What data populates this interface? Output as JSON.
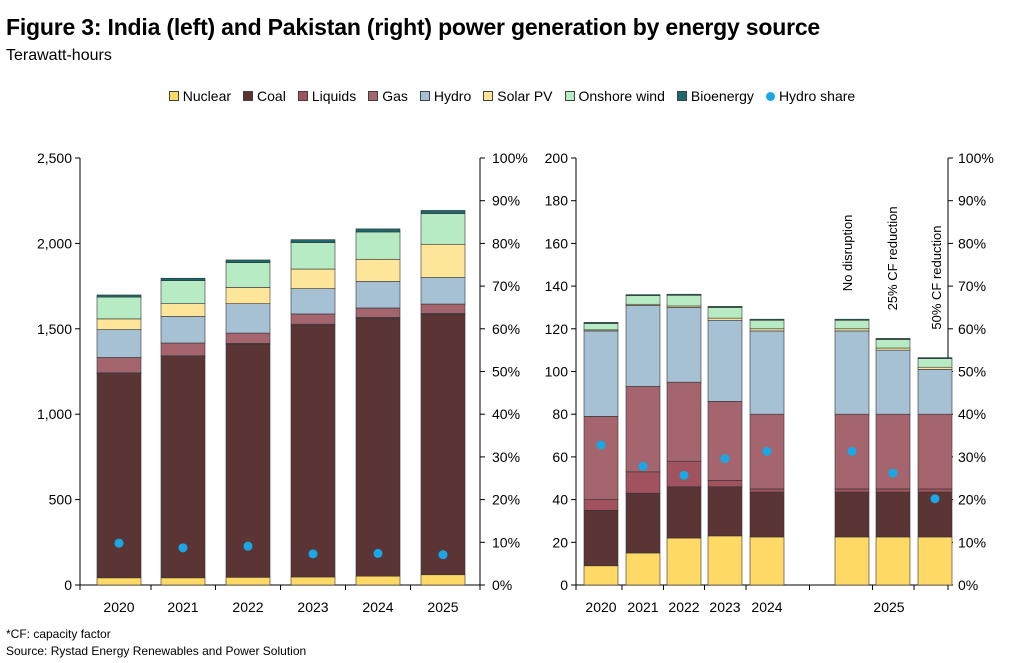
{
  "title": "Figure 3: India (left) and Pakistan (right) power generation by energy source",
  "subtitle": "Terawatt-hours",
  "footnote": "*CF: capacity factor",
  "source": "Source: Rystad Energy Renewables and Power Solution",
  "legend": [
    {
      "name": "Nuclear",
      "color": "#ffd966",
      "kind": "bar"
    },
    {
      "name": "Coal",
      "color": "#5b3536",
      "kind": "bar"
    },
    {
      "name": "Liquids",
      "color": "#a0525e",
      "kind": "bar"
    },
    {
      "name": "Gas",
      "color": "#a5656e",
      "kind": "bar"
    },
    {
      "name": "Hydro",
      "color": "#a6c1d4",
      "kind": "bar"
    },
    {
      "name": "Solar PV",
      "color": "#fde69a",
      "kind": "bar"
    },
    {
      "name": "Onshore wind",
      "color": "#b7ebc4",
      "kind": "bar"
    },
    {
      "name": "Bioenergy",
      "color": "#1b6b6e",
      "kind": "bar"
    },
    {
      "name": "Hydro share",
      "color": "#1aa7e6",
      "kind": "dot"
    }
  ],
  "chart_data": [
    {
      "type": "bar",
      "stacked": true,
      "country": "India",
      "categories": [
        "2020",
        "2021",
        "2022",
        "2023",
        "2024",
        "2025"
      ],
      "ylim": [
        0,
        2500
      ],
      "yticks": [
        "0",
        "500",
        "1,000",
        "1,500",
        "2,000",
        "2,500"
      ],
      "y2lim": [
        0,
        100
      ],
      "y2ticks": [
        "0%",
        "10%",
        "20%",
        "30%",
        "40%",
        "50%",
        "60%",
        "70%",
        "80%",
        "90%",
        "100%"
      ],
      "series": [
        {
          "name": "Nuclear",
          "values": [
            42,
            42,
            45,
            47,
            52,
            60
          ]
        },
        {
          "name": "Coal",
          "values": [
            1195,
            1295,
            1365,
            1475,
            1510,
            1525
          ]
        },
        {
          "name": "Liquids",
          "values": [
            5,
            5,
            5,
            5,
            5,
            5
          ]
        },
        {
          "name": "Gas",
          "values": [
            90,
            75,
            60,
            60,
            55,
            55
          ]
        },
        {
          "name": "Hydro",
          "values": [
            163,
            155,
            172,
            148,
            155,
            155
          ]
        },
        {
          "name": "Solar PV",
          "values": [
            63,
            75,
            95,
            115,
            130,
            195
          ]
        },
        {
          "name": "Onshore wind",
          "values": [
            128,
            135,
            145,
            155,
            160,
            180
          ]
        },
        {
          "name": "Bioenergy",
          "values": [
            12,
            14,
            16,
            17,
            18,
            18
          ]
        }
      ],
      "hydro_share": [
        9.8,
        8.7,
        9.1,
        7.3,
        7.4,
        7.1
      ]
    },
    {
      "type": "bar",
      "stacked": true,
      "country": "Pakistan",
      "categories": [
        "2020",
        "2021",
        "2022",
        "2023",
        "2024",
        "",
        "2025",
        ""
      ],
      "scenario_labels": [
        "",
        "",
        "",
        "",
        "",
        "No disruption",
        "25% CF reduction",
        "50% CF reduction"
      ],
      "ylim": [
        0,
        200
      ],
      "yticks": [
        "0",
        "20",
        "40",
        "60",
        "80",
        "100",
        "120",
        "140",
        "160",
        "180",
        "200"
      ],
      "y2lim": [
        0,
        100
      ],
      "y2ticks": [
        "0%",
        "10%",
        "20%",
        "30%",
        "40%",
        "50%",
        "60%",
        "70%",
        "80%",
        "90%",
        "100%"
      ],
      "series": [
        {
          "name": "Nuclear",
          "values": [
            9,
            15,
            22,
            23,
            22.5,
            22.5,
            22.5,
            22.5
          ]
        },
        {
          "name": "Coal",
          "values": [
            26,
            28,
            24,
            23,
            21,
            21,
            21,
            21
          ]
        },
        {
          "name": "Liquids",
          "values": [
            5,
            10,
            12,
            3,
            1.5,
            1.5,
            1.5,
            1.5
          ]
        },
        {
          "name": "Gas",
          "values": [
            39,
            40,
            37,
            37,
            35,
            35,
            35,
            35
          ]
        },
        {
          "name": "Hydro",
          "values": [
            40,
            38,
            35,
            38,
            39,
            39,
            30,
            21
          ]
        },
        {
          "name": "Solar PV",
          "values": [
            0.5,
            0.5,
            0.7,
            1,
            1,
            1,
            1,
            1
          ]
        },
        {
          "name": "Onshore wind",
          "values": [
            3,
            4,
            5,
            5,
            4,
            4,
            4,
            4
          ]
        },
        {
          "name": "Bioenergy",
          "values": [
            0.5,
            0.5,
            0.5,
            0.5,
            0.5,
            0.5,
            0.5,
            0.5
          ]
        }
      ],
      "hydro_share": [
        32.8,
        27.8,
        25.7,
        29.6,
        31.3,
        31.3,
        26.2,
        20.2
      ]
    }
  ]
}
